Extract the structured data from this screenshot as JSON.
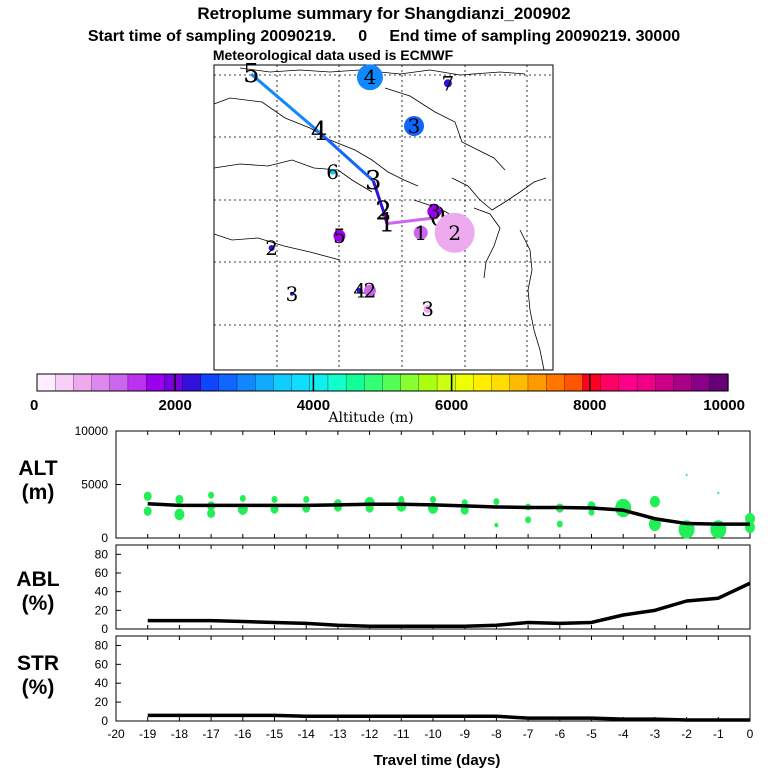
{
  "header": {
    "title": "Retroplume summary for Shangdianzi_200902",
    "subtitle": "Start time of sampling 20090219.     0     End time of sampling 20090219. 30000",
    "met": "Meteorological data used is ECMWF"
  },
  "colorbar": {
    "ticks": [
      "0",
      "2000",
      "4000",
      "6000",
      "8000",
      "10000"
    ],
    "title": "Altitude (m)",
    "colors": [
      "#ffeeff",
      "#f8d0f8",
      "#eeaaee",
      "#dd88ee",
      "#cc66ee",
      "#bb33ee",
      "#9900ee",
      "#7700dd",
      "#3311dd",
      "#1144ff",
      "#1166ff",
      "#1188ff",
      "#11aaff",
      "#11ccff",
      "#11ddff",
      "#11eeee",
      "#11ffcc",
      "#11ff99",
      "#33ff77",
      "#55ff55",
      "#88ff33",
      "#aaff11",
      "#ccff11",
      "#eeff00",
      "#ffee00",
      "#ffdd00",
      "#ffbb00",
      "#ff9900",
      "#ff7700",
      "#ff5500",
      "#ff0022",
      "#ff0066",
      "#ff0088",
      "#ee0088",
      "#cc0088",
      "#aa0088",
      "#880088",
      "#660077"
    ]
  },
  "map": {
    "trajectory": [
      {
        "label": "5",
        "fx": 0.11,
        "fy": 0.03,
        "size": 0,
        "color": "#000000"
      },
      {
        "label": "4",
        "fx": 0.31,
        "fy": 0.22,
        "size": 0,
        "color": "#000000"
      },
      {
        "label": "3",
        "fx": 0.47,
        "fy": 0.38,
        "size": 0,
        "color": "#000000"
      },
      {
        "label": "2",
        "fx": 0.5,
        "fy": 0.48,
        "size": 0,
        "color": "#000000"
      },
      {
        "label": "1",
        "fx": 0.51,
        "fy": 0.52,
        "size": 0,
        "color": "#000000"
      },
      {
        "label": "0",
        "fx": 0.66,
        "fy": 0.5,
        "size": 0,
        "color": "#000000"
      }
    ],
    "clusters": [
      {
        "label": "4",
        "fx": 0.46,
        "fy": 0.04,
        "size": 13,
        "color": "#1188ff"
      },
      {
        "label": "7",
        "fx": 0.69,
        "fy": 0.06,
        "size": 4,
        "color": "#3311dd"
      },
      {
        "label": "3",
        "fx": 0.59,
        "fy": 0.2,
        "size": 10,
        "color": "#1166ff"
      },
      {
        "label": "6",
        "fx": 0.35,
        "fy": 0.35,
        "size": 3,
        "color": "#11ccff"
      },
      {
        "label": "3",
        "fx": 0.65,
        "fy": 0.48,
        "size": 7,
        "color": "#9900ee"
      },
      {
        "label": "2",
        "fx": 0.71,
        "fy": 0.55,
        "size": 20,
        "color": "#eeaaee"
      },
      {
        "label": "1",
        "fx": 0.61,
        "fy": 0.55,
        "size": 7,
        "color": "#cc66ee"
      },
      {
        "label": "5",
        "fx": 0.37,
        "fy": 0.56,
        "size": 6,
        "color": "#9900ee"
      },
      {
        "label": "2",
        "fx": 0.17,
        "fy": 0.6,
        "size": 3,
        "color": "#3311dd"
      },
      {
        "label": "3",
        "fx": 0.23,
        "fy": 0.75,
        "size": 2,
        "color": "#3311dd"
      },
      {
        "label": "4",
        "fx": 0.43,
        "fy": 0.74,
        "size": 3,
        "color": "#3311dd"
      },
      {
        "label": "2",
        "fx": 0.46,
        "fy": 0.74,
        "size": 6,
        "color": "#cc66ee"
      },
      {
        "label": "3",
        "fx": 0.63,
        "fy": 0.8,
        "size": 4,
        "color": "#eeaaee"
      }
    ]
  },
  "chart_data": [
    {
      "type": "line",
      "title": "ALT (m)",
      "ylabel": "ALT\n(m)",
      "xlabel": "Travel time (days)",
      "xlim": [
        -20,
        0
      ],
      "ylim": [
        0,
        10000
      ],
      "yticks": [
        "0",
        "5000",
        "10000"
      ],
      "x": [
        -19,
        -18,
        -17,
        -16,
        -15,
        -14,
        -13,
        -12,
        -11,
        -10,
        -9,
        -8,
        -7,
        -6,
        -5,
        -4,
        -3,
        -2,
        -1,
        0
      ],
      "series": [
        {
          "name": "mean altitude",
          "values": [
            3200,
            3050,
            3050,
            3050,
            3050,
            3050,
            3100,
            3150,
            3150,
            3100,
            3000,
            2900,
            2850,
            2850,
            2800,
            2600,
            1800,
            1350,
            1300,
            1300
          ]
        }
      ],
      "scatter": {
        "name": "cluster altitudes",
        "color": "#22ee55",
        "points": [
          {
            "x": -19,
            "y": 3900,
            "s": 4
          },
          {
            "x": -19,
            "y": 2500,
            "s": 4
          },
          {
            "x": -18,
            "y": 3600,
            "s": 4
          },
          {
            "x": -18,
            "y": 2200,
            "s": 5
          },
          {
            "x": -17,
            "y": 4000,
            "s": 3
          },
          {
            "x": -17,
            "y": 3000,
            "s": 4
          },
          {
            "x": -17,
            "y": 2300,
            "s": 4
          },
          {
            "x": -16,
            "y": 3700,
            "s": 3
          },
          {
            "x": -16,
            "y": 2700,
            "s": 5
          },
          {
            "x": -15,
            "y": 3600,
            "s": 3
          },
          {
            "x": -15,
            "y": 2700,
            "s": 4
          },
          {
            "x": -14,
            "y": 3600,
            "s": 3
          },
          {
            "x": -14,
            "y": 2800,
            "s": 4
          },
          {
            "x": -13,
            "y": 3200,
            "s": 4
          },
          {
            "x": -13,
            "y": 2900,
            "s": 4
          },
          {
            "x": -12,
            "y": 3300,
            "s": 5
          },
          {
            "x": -12,
            "y": 2800,
            "s": 4
          },
          {
            "x": -11,
            "y": 3600,
            "s": 3
          },
          {
            "x": -11,
            "y": 3000,
            "s": 5
          },
          {
            "x": -10,
            "y": 3600,
            "s": 3
          },
          {
            "x": -10,
            "y": 2800,
            "s": 5
          },
          {
            "x": -9,
            "y": 3300,
            "s": 3
          },
          {
            "x": -9,
            "y": 2600,
            "s": 4
          },
          {
            "x": -8,
            "y": 3400,
            "s": 3
          },
          {
            "x": -8,
            "y": 1200,
            "s": 2
          },
          {
            "x": -7,
            "y": 2900,
            "s": 3
          },
          {
            "x": -7,
            "y": 1700,
            "s": 3
          },
          {
            "x": -6,
            "y": 2800,
            "s": 4
          },
          {
            "x": -6,
            "y": 1300,
            "s": 3
          },
          {
            "x": -5,
            "y": 3000,
            "s": 4
          },
          {
            "x": -5,
            "y": 2400,
            "s": 3
          },
          {
            "x": -4,
            "y": 2800,
            "s": 8
          },
          {
            "x": -3,
            "y": 3400,
            "s": 5
          },
          {
            "x": -3,
            "y": 1300,
            "s": 6
          },
          {
            "x": -2,
            "y": 5900,
            "s": 1
          },
          {
            "x": -2,
            "y": 800,
            "s": 8
          },
          {
            "x": -1,
            "y": 4200,
            "s": 1
          },
          {
            "x": -1,
            "y": 800,
            "s": 8
          },
          {
            "x": 0,
            "y": 1800,
            "s": 5
          },
          {
            "x": 0,
            "y": 1000,
            "s": 5
          }
        ]
      }
    },
    {
      "type": "line",
      "title": "ABL (%)",
      "ylabel": "ABL\n(%)",
      "xlabel": "Travel time (days)",
      "xlim": [
        -20,
        0
      ],
      "ylim": [
        0,
        90
      ],
      "yticks": [
        "0",
        "20",
        "40",
        "60",
        "80"
      ],
      "x": [
        -19,
        -18,
        -17,
        -16,
        -15,
        -14,
        -13,
        -12,
        -11,
        -10,
        -9,
        -8,
        -7,
        -6,
        -5,
        -4,
        -3,
        -2,
        -1,
        0
      ],
      "series": [
        {
          "name": "ABL",
          "values": [
            9,
            9,
            9,
            8,
            7,
            6,
            4,
            3,
            3,
            3,
            3,
            4,
            7,
            6,
            7,
            15,
            20,
            30,
            33,
            49
          ]
        }
      ]
    },
    {
      "type": "line",
      "title": "STR (%)",
      "ylabel": "STR\n(%)",
      "xlabel": "Travel time (days)",
      "xlim": [
        -20,
        0
      ],
      "ylim": [
        0,
        90
      ],
      "yticks": [
        "0",
        "20",
        "40",
        "60",
        "80"
      ],
      "xticks": [
        "-20",
        "-19",
        "-18",
        "-17",
        "-16",
        "-15",
        "-14",
        "-13",
        "-12",
        "-11",
        "-10",
        "-9",
        "-8",
        "-7",
        "-6",
        "-5",
        "-4",
        "-3",
        "-2",
        "-1",
        "0"
      ],
      "x": [
        -19,
        -18,
        -17,
        -16,
        -15,
        -14,
        -13,
        -12,
        -11,
        -10,
        -9,
        -8,
        -7,
        -6,
        -5,
        -4,
        -3,
        -2,
        -1,
        0
      ],
      "series": [
        {
          "name": "STR",
          "values": [
            6,
            6,
            6,
            6,
            6,
            5,
            5,
            5,
            5,
            5,
            5,
            5,
            3,
            3,
            3,
            2,
            2,
            1,
            1,
            1
          ]
        }
      ]
    }
  ]
}
